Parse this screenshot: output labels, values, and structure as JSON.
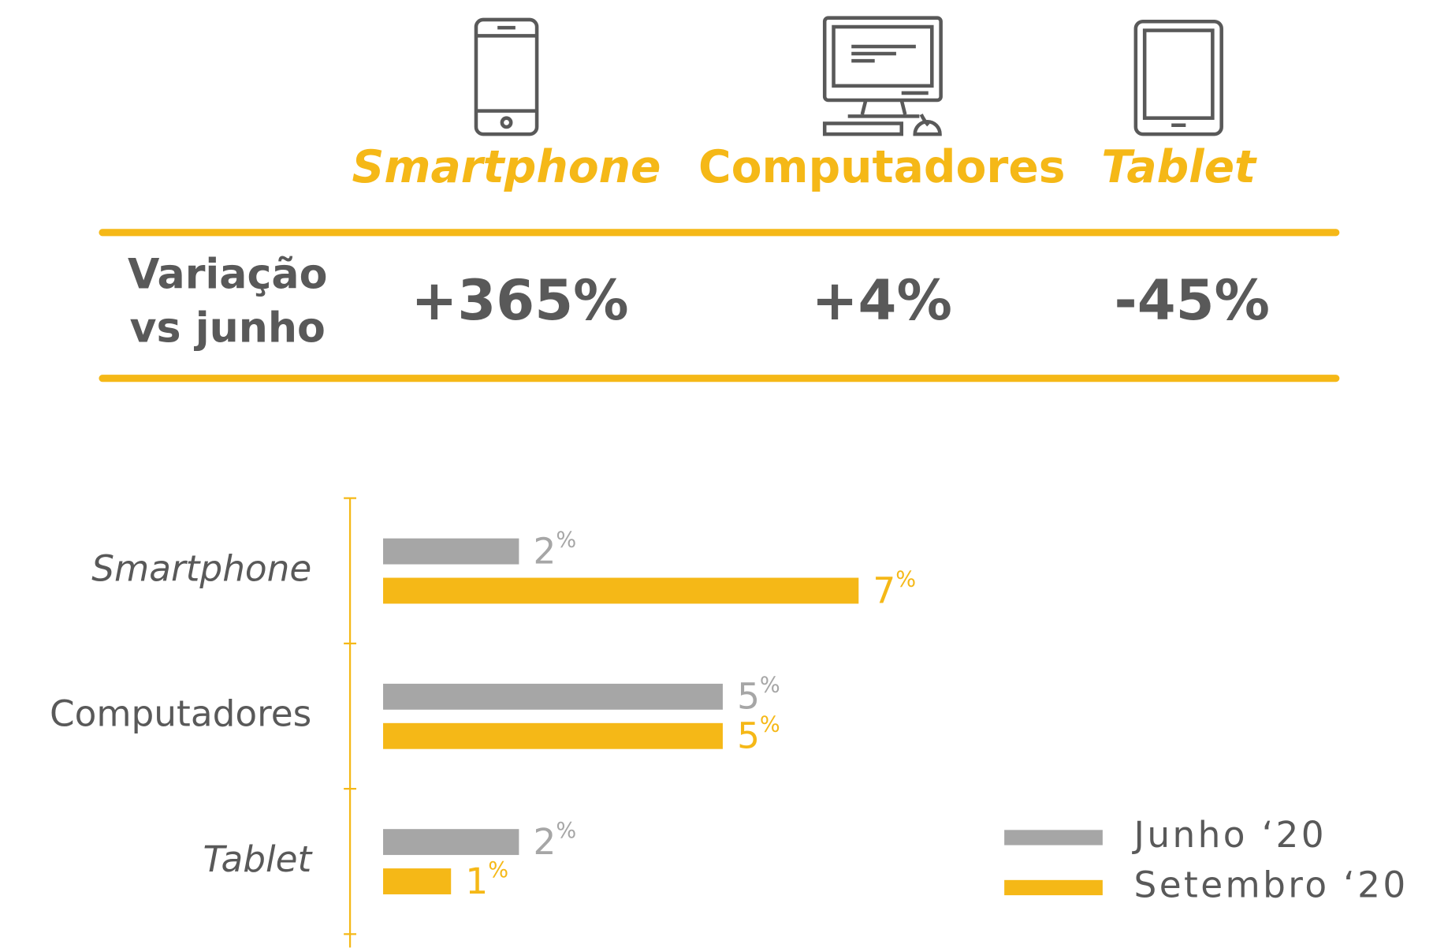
{
  "header": {
    "columns": [
      "Smartphone",
      "Computadores",
      "Tablet"
    ],
    "row_label": [
      "Variação",
      "vs junho"
    ],
    "values": [
      "+365%",
      "+4%",
      "-45%"
    ]
  },
  "chart_data": {
    "type": "hbar",
    "categories": [
      "Smartphone",
      "Computadores",
      "Tablet"
    ],
    "series": [
      {
        "name": "Junho ‘20",
        "color": "#a6a6a6",
        "values": [
          2,
          5,
          2
        ],
        "value_labels": [
          "2%",
          "5%",
          "2%"
        ]
      },
      {
        "name": "Setembro ‘20",
        "color": "#f5b817",
        "values": [
          7,
          5,
          1
        ],
        "value_labels": [
          "7%",
          "5%",
          "1%"
        ]
      }
    ],
    "xlim": [
      0,
      7
    ]
  }
}
